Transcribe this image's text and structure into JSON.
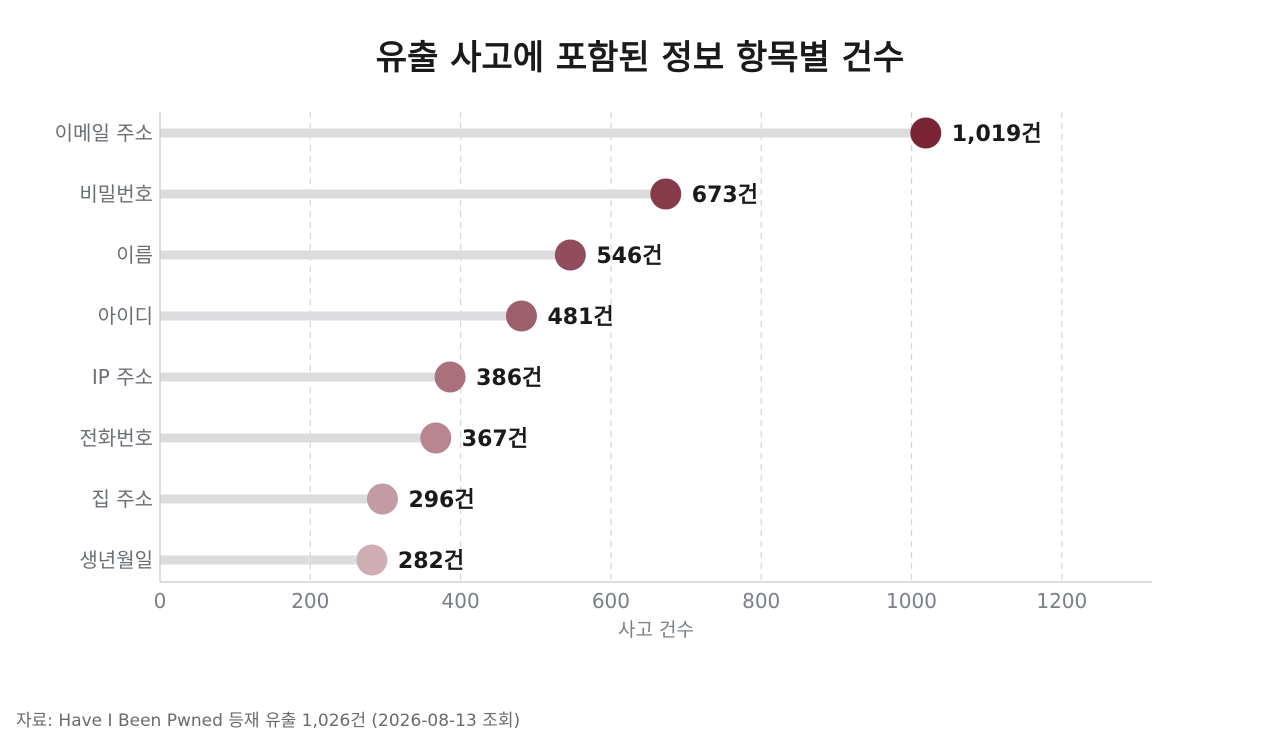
{
  "chart_data": {
    "type": "lollipop",
    "title": "유출 사고에 포함된 정보 항목별 건수",
    "xlabel": "사고 건수",
    "ylabel": "",
    "xlim": [
      0,
      1320
    ],
    "xticks": [
      0,
      200,
      400,
      600,
      800,
      1000,
      1200
    ],
    "grid": "vertical dashed",
    "value_suffix": "건",
    "categories": [
      "이메일 주소",
      "비밀번호",
      "이름",
      "아이디",
      "IP 주소",
      "전화번호",
      "집 주소",
      "생년월일"
    ],
    "values": [
      1019,
      673,
      546,
      481,
      386,
      367,
      296,
      282
    ],
    "value_labels": [
      "1,019건",
      "673건",
      "546건",
      "481건",
      "386건",
      "367건",
      "296건",
      "282건"
    ],
    "colors": [
      "#7a2535",
      "#863b4b",
      "#924d5c",
      "#9e5f6c",
      "#aa717d",
      "#b7868f",
      "#c39ba2",
      "#cfaeb3"
    ],
    "stem_color": "#dcdcde",
    "grid_color": "#d6d6d6",
    "axis_color": "#c8c8c8",
    "tick_text_color": "#7a7f8a"
  },
  "source": "자료: Have I Been Pwned 등재 유출 1,026건 (2026-08-13 조회)"
}
